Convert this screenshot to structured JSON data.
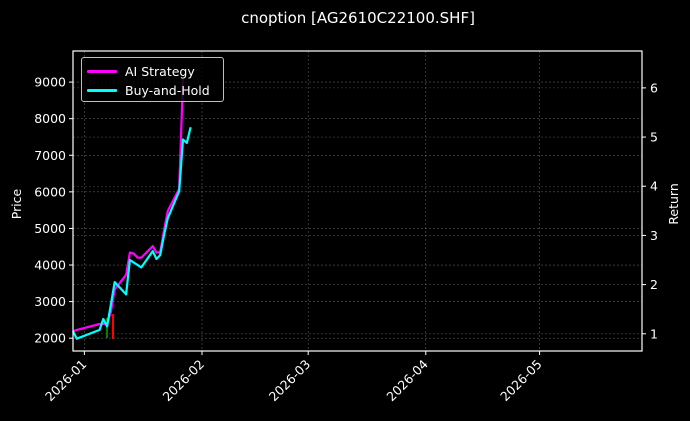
{
  "title": "cnoption [AG2610C22100.SHF]",
  "legend": {
    "items": [
      {
        "label": "AI Strategy",
        "color": "#ff00ff"
      },
      {
        "label": "Buy-and-Hold",
        "color": "#00ffff"
      }
    ]
  },
  "axes": {
    "left_label": "Price",
    "right_label": "Return",
    "left_ticks": [
      "2000",
      "3000",
      "4000",
      "5000",
      "6000",
      "7000",
      "8000",
      "9000"
    ],
    "right_ticks": [
      "1",
      "2",
      "3",
      "4",
      "5",
      "6"
    ],
    "x_ticks": [
      "2026-01",
      "2026-02",
      "2026-03",
      "2026-04",
      "2026-05"
    ]
  },
  "colors": {
    "background": "#000000",
    "ai_strategy": "#ff00ff",
    "buy_and_hold": "#00ffff",
    "candle_up": "#00aa00",
    "candle_down": "#ff0000",
    "grid": "#555555"
  },
  "chart_data": {
    "type": "line",
    "title": "cnoption [AG2610C22100.SHF]",
    "xlabel": "",
    "ylabel": "Price",
    "ylabel_right": "Return",
    "ylim": [
      1650,
      9850
    ],
    "ylim_right": [
      0.65,
      6.75
    ],
    "xlim": [
      "2025-12-29",
      "2026-05-28"
    ],
    "grid": true,
    "legend_position": "upper left",
    "x_tick_labels": [
      "2026-01",
      "2026-02",
      "2026-03",
      "2026-04",
      "2026-05"
    ],
    "y_tick_labels": [
      2000,
      3000,
      4000,
      5000,
      6000,
      7000,
      8000,
      9000
    ],
    "y_right_tick_labels": [
      1,
      2,
      3,
      4,
      5,
      6
    ],
    "series": [
      {
        "name": "AI Strategy",
        "axis": "right",
        "x": [
          "2025-12-29",
          "2025-12-30",
          "2026-01-05",
          "2026-01-06",
          "2026-01-07",
          "2026-01-08",
          "2026-01-09",
          "2026-01-12",
          "2026-01-13",
          "2026-01-14",
          "2026-01-15",
          "2026-01-16",
          "2026-01-19",
          "2026-01-20",
          "2026-01-21",
          "2026-01-22",
          "2026-01-23",
          "2026-01-26",
          "2026-01-27"
        ],
        "values": [
          1.05,
          1.08,
          1.2,
          1.2,
          1.2,
          1.45,
          1.9,
          2.2,
          2.65,
          2.63,
          2.55,
          2.55,
          2.78,
          2.65,
          2.66,
          3.1,
          3.5,
          3.95,
          6.2
        ]
      },
      {
        "name": "Buy-and-Hold",
        "axis": "right",
        "x": [
          "2025-12-29",
          "2025-12-30",
          "2026-01-05",
          "2026-01-06",
          "2026-01-07",
          "2026-01-08",
          "2026-01-09",
          "2026-01-12",
          "2026-01-13",
          "2026-01-14",
          "2026-01-15",
          "2026-01-16",
          "2026-01-19",
          "2026-01-20",
          "2026-01-21",
          "2026-01-22",
          "2026-01-23",
          "2026-01-26",
          "2026-01-27",
          "2026-01-28",
          "2026-01-29"
        ],
        "values": [
          1.05,
          0.9,
          1.08,
          1.3,
          1.15,
          1.6,
          2.05,
          1.8,
          2.5,
          2.45,
          2.4,
          2.35,
          2.68,
          2.52,
          2.6,
          3.0,
          3.35,
          3.9,
          4.95,
          4.88,
          5.2
        ]
      }
    ],
    "candles": {
      "axis": "left",
      "note": "small price candlestick marks near early January",
      "x": [
        "2026-01-06",
        "2026-01-07"
      ],
      "colors": [
        "#00aa00",
        "#ff0000"
      ]
    }
  }
}
